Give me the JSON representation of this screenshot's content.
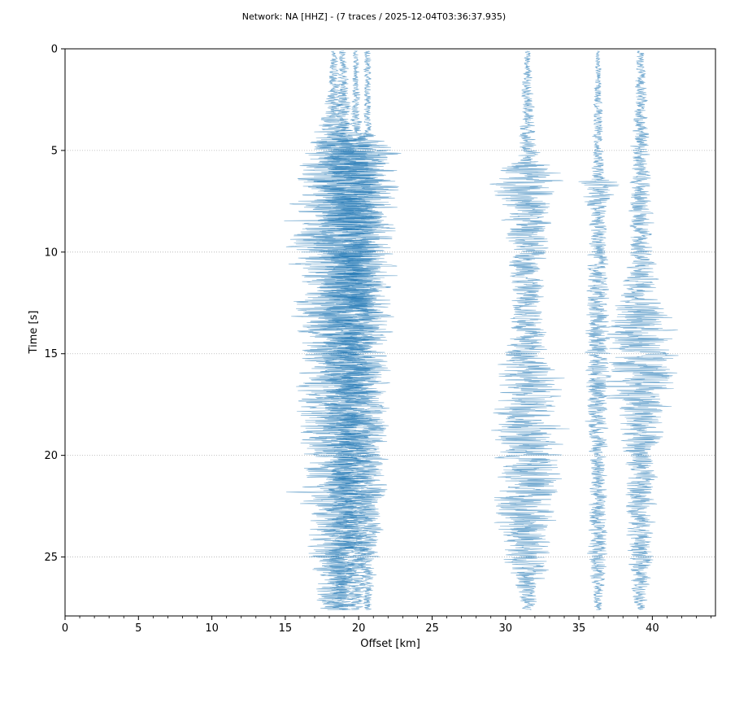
{
  "chart_data": {
    "type": "line",
    "title": "Network: NA [HHZ] - (7 traces / 2025-12-04T03:36:37.935)",
    "xlabel": "Offset [km]",
    "ylabel": "Time [s]",
    "xlim": [
      0,
      44.3
    ],
    "ylim": [
      27.9,
      0
    ],
    "y_inverted": true,
    "x_ticks": [
      0,
      5,
      10,
      15,
      20,
      25,
      30,
      35,
      40
    ],
    "x_tick_labels": [
      "0",
      "5",
      "10",
      "15",
      "20",
      "25",
      "30",
      "35",
      "40"
    ],
    "x_minor_tick_step": 1,
    "y_ticks": [
      0,
      5,
      10,
      15,
      20,
      25
    ],
    "y_tick_labels": [
      "0",
      "5",
      "10",
      "15",
      "20",
      "25"
    ],
    "grid": "horizontal-dotted",
    "trace_color": "#1f77b4",
    "trace_opacity": 0.6,
    "series": [
      {
        "offset_km": 18.3,
        "envelope": [
          [
            0,
            0.2
          ],
          [
            3,
            0.7
          ],
          [
            5,
            2.5
          ],
          [
            9,
            3.5
          ],
          [
            15,
            3.0
          ],
          [
            20,
            2.8
          ],
          [
            24,
            2.3
          ],
          [
            27.6,
            1.2
          ]
        ]
      },
      {
        "offset_km": 18.95,
        "envelope": [
          [
            0,
            0.3
          ],
          [
            4,
            0.7
          ],
          [
            5.2,
            2.7
          ],
          [
            9,
            2.4
          ],
          [
            15,
            1.8
          ],
          [
            20,
            1.5
          ],
          [
            27.6,
            1.0
          ]
        ]
      },
      {
        "offset_km": 19.8,
        "envelope": [
          [
            0,
            0.2
          ],
          [
            4,
            0.5
          ],
          [
            5.2,
            2.3
          ],
          [
            9,
            2.2
          ],
          [
            15,
            1.7
          ],
          [
            22,
            1.5
          ],
          [
            27.6,
            0.6
          ]
        ]
      },
      {
        "offset_km": 20.6,
        "envelope": [
          [
            0,
            0.3
          ],
          [
            4,
            0.3
          ],
          [
            5.2,
            2.5
          ],
          [
            9,
            2.2
          ],
          [
            15,
            1.8
          ],
          [
            22,
            1.5
          ],
          [
            27.6,
            0.3
          ]
        ]
      },
      {
        "offset_km": 31.5,
        "envelope": [
          [
            0,
            0.2
          ],
          [
            5.5,
            0.8
          ],
          [
            6,
            3.0
          ],
          [
            10,
            1.5
          ],
          [
            13,
            1.3
          ],
          [
            17,
            2.6
          ],
          [
            22,
            2.8
          ],
          [
            25,
            2.0
          ],
          [
            27.6,
            0.5
          ]
        ]
      },
      {
        "offset_km": 36.3,
        "envelope": [
          [
            0,
            0.2
          ],
          [
            6.3,
            0.5
          ],
          [
            6.6,
            2.0
          ],
          [
            8,
            0.6
          ],
          [
            12,
            0.9
          ],
          [
            16,
            1.0
          ],
          [
            20,
            0.7
          ],
          [
            25,
            0.8
          ],
          [
            27.6,
            0.3
          ]
        ]
      },
      {
        "offset_km": 39.2,
        "envelope": [
          [
            0,
            0.3
          ],
          [
            6.5,
            0.8
          ],
          [
            10,
            1.0
          ],
          [
            12,
            1.5
          ],
          [
            14,
            3.0
          ],
          [
            16.6,
            2.8
          ],
          [
            20,
            1.3
          ],
          [
            25,
            1.0
          ],
          [
            27.6,
            0.4
          ]
        ]
      }
    ]
  }
}
